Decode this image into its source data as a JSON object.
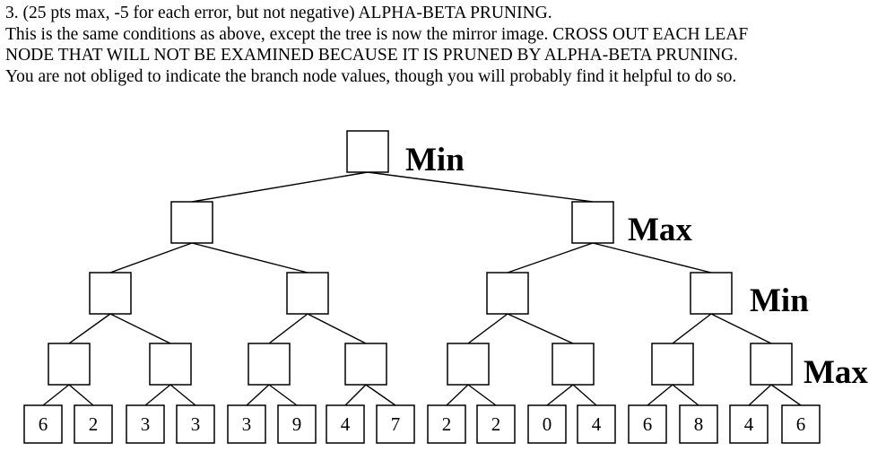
{
  "question": {
    "line1": "3. (25 pts max, -5 for each error, but not negative) ALPHA-BETA PRUNING.",
    "line2": "This is the same conditions as above, except the tree is now the mirror image. CROSS OUT EACH LEAF",
    "line3": "NODE THAT WILL NOT BE EXAMINED BECAUSE IT IS PRUNED BY ALPHA-BETA PRUNING.",
    "line4": "You are not obliged to indicate the branch node values, though you will probably find it helpful to do so."
  },
  "tree": {
    "levels": [
      "Min",
      "Max",
      "Min",
      "Max"
    ],
    "leaves": [
      "6",
      "2",
      "3",
      "3",
      "3",
      "9",
      "4",
      "7",
      "2",
      "2",
      "0",
      "4",
      "6",
      "8",
      "4",
      "6"
    ]
  }
}
